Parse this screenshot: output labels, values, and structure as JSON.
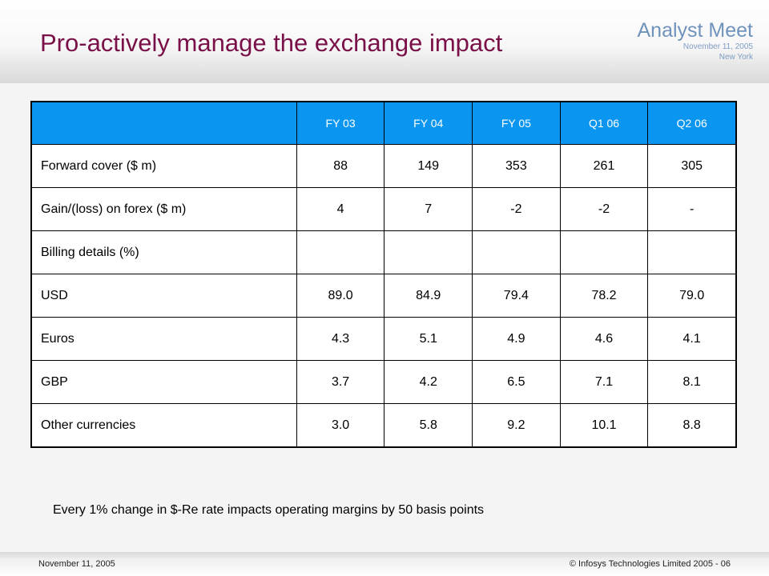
{
  "header": {
    "title": "Pro-actively manage the exchange impact",
    "brand": {
      "name": "Analyst Meet",
      "date": "November 11, 2005",
      "location": "New York"
    }
  },
  "table": {
    "columns": [
      "",
      "FY 03",
      "FY 04",
      "FY 05",
      "Q1 06",
      "Q2 06"
    ],
    "rows": [
      [
        "Forward cover ($ m)",
        "88",
        "149",
        "353",
        "261",
        "305"
      ],
      [
        "Gain/(loss) on forex ($ m)",
        "4",
        "7",
        "-2",
        "-2",
        "-"
      ],
      [
        "Billing details (%)",
        "",
        "",
        "",
        "",
        ""
      ],
      [
        "USD",
        "89.0",
        "84.9",
        "79.4",
        "78.2",
        "79.0"
      ],
      [
        "Euros",
        "4.3",
        "5.1",
        "4.9",
        "4.6",
        "4.1"
      ],
      [
        "GBP",
        "3.7",
        "4.2",
        "6.5",
        "7.1",
        "8.1"
      ],
      [
        "Other currencies",
        "3.0",
        "5.8",
        "9.2",
        "10.1",
        "8.8"
      ]
    ]
  },
  "note": "Every 1% change in $-Re rate impacts operating margins by 50 basis points",
  "footer": {
    "date": "November 11, 2005",
    "copyright": "© Infosys Technologies Limited 2005 - 06"
  },
  "colors": {
    "title": "#7a1048",
    "table_header": "#0a96f0",
    "brand": "#6f93bd"
  }
}
